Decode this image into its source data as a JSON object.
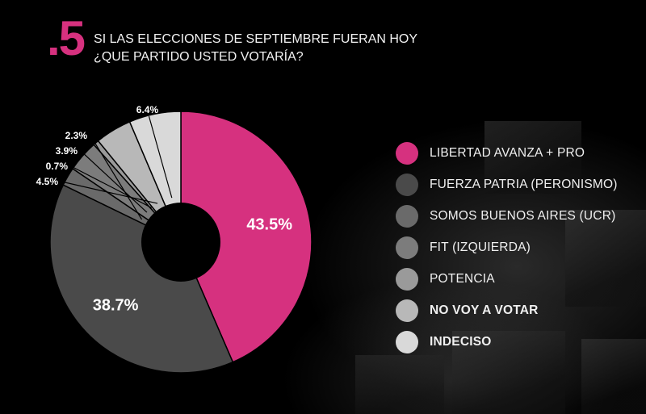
{
  "header": {
    "number": ".5",
    "question_line1": "SI LAS ELECCIONES DE SEPTIEMBRE FUERAN HOY",
    "question_line2": "¿QUE PARTIDO USTED VOTARÍA?"
  },
  "chart_data": {
    "type": "pie",
    "donut": true,
    "categories": [
      "LIBERTAD AVANZA + PRO",
      "FUERZA PATRIA (PERONISMO)",
      "SOMOS BUENOS AIRES (UCR)",
      "FIT (IZQUIERDA)",
      "POTENCIA",
      "NO VOY A VOTAR",
      "INDECISO"
    ],
    "values": [
      43.5,
      38.7,
      2.3,
      3.9,
      0.7,
      4.5,
      6.4
    ],
    "labels": [
      "43.5%",
      "38.7%",
      "2.3%",
      "3.9%",
      "0.7%",
      "4.5%",
      "6.4%"
    ],
    "colors": [
      "#d6317f",
      "#4a4a4a",
      "#6a6a6a",
      "#7c7c7c",
      "#9a9a9a",
      "#b8b8b8",
      "#d9d9d9"
    ],
    "bold_legend": [
      false,
      false,
      false,
      false,
      false,
      true,
      true
    ],
    "legend_position": "right"
  }
}
